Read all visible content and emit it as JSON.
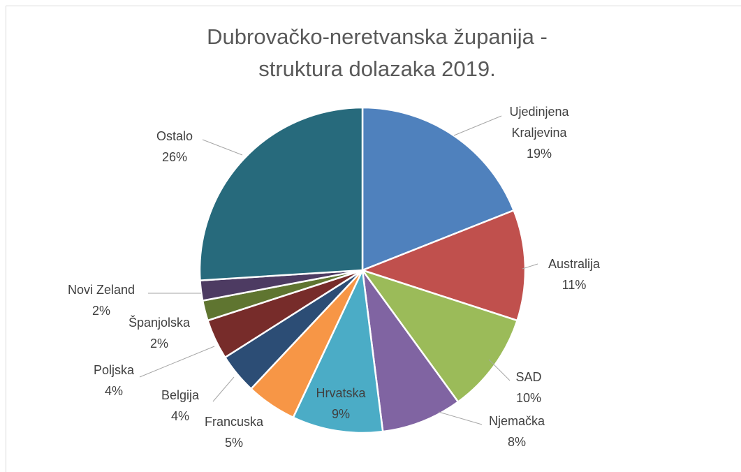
{
  "chart_data": {
    "type": "pie",
    "title": "Dubrovačko-neretvanska županija - struktura dolazaka 2019.",
    "categories": [
      "Ujedinjena Kraljevina",
      "Australija",
      "SAD",
      "Njemačka",
      "Hrvatska",
      "Francuska",
      "Belgija",
      "Poljska",
      "Španjolska",
      "Novi Zeland",
      "Ostalo"
    ],
    "values": [
      19,
      11,
      10,
      8,
      9,
      5,
      4,
      4,
      2,
      2,
      26
    ],
    "value_labels": [
      "19%",
      "11%",
      "10%",
      "8%",
      "9%",
      "5%",
      "4%",
      "4%",
      "2%",
      "2%",
      "26%"
    ],
    "colors": [
      "#4f81bd",
      "#c0504d",
      "#9bbb59",
      "#8064a2",
      "#4bacc6",
      "#f79646",
      "#2c4d75",
      "#772c2a",
      "#5f7530",
      "#4d3b62",
      "#276a7c"
    ]
  }
}
